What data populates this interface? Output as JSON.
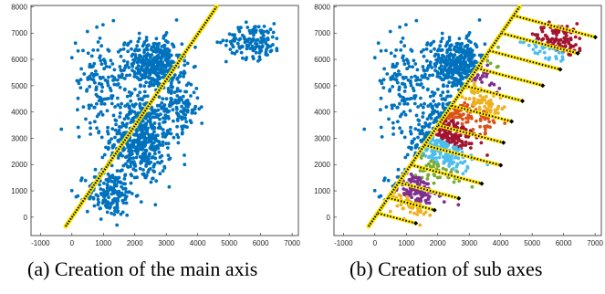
{
  "figure": {
    "colors": {
      "points": "#0072BD",
      "axis_fill": "#FFE600",
      "axis_dots": "#000000",
      "sub_colors": [
        "#0072BD",
        "#D95319",
        "#EDB120",
        "#7E2F8E",
        "#77AC30",
        "#4DBEEE",
        "#A2142F"
      ]
    }
  },
  "chart_data": [
    {
      "type": "scatter",
      "caption": "(a) Creation of the main axis",
      "xlim": [
        -1300,
        7200
      ],
      "ylim": [
        -700,
        8050
      ],
      "x_ticks": [
        -1000,
        0,
        1000,
        2000,
        3000,
        4000,
        5000,
        6000,
        7000
      ],
      "y_ticks": [
        0,
        1000,
        2000,
        3000,
        4000,
        5000,
        6000,
        7000,
        8000
      ],
      "main_axis": {
        "from": [
          -200,
          -350
        ],
        "to": [
          4600,
          8000
        ]
      },
      "clusters": [
        {
          "cx": 2200,
          "cy": 3000,
          "sx": 900,
          "sy": 1600,
          "n": 520
        },
        {
          "cx": 2600,
          "cy": 5800,
          "sx": 800,
          "sy": 900,
          "n": 380
        },
        {
          "cx": 1200,
          "cy": 900,
          "sx": 700,
          "sy": 800,
          "n": 170
        },
        {
          "cx": 5800,
          "cy": 6700,
          "sx": 800,
          "sy": 600,
          "n": 140
        },
        {
          "cx": 900,
          "cy": 5200,
          "sx": 700,
          "sy": 1600,
          "n": 130
        },
        {
          "cx": 3500,
          "cy": 4200,
          "sx": 500,
          "sy": 900,
          "n": 110
        }
      ]
    },
    {
      "type": "scatter",
      "caption": "(b) Creation of sub axes",
      "xlim": [
        -1300,
        7200
      ],
      "ylim": [
        -700,
        8050
      ],
      "x_ticks": [
        -1000,
        0,
        1000,
        2000,
        3000,
        4000,
        5000,
        6000,
        7000
      ],
      "y_ticks": [
        0,
        1000,
        2000,
        3000,
        4000,
        5000,
        6000,
        7000,
        8000
      ],
      "main_axis": {
        "from": [
          -200,
          -350
        ],
        "to": [
          4600,
          8000
        ]
      },
      "sub_axes": [
        {
          "t": 0.06,
          "len": 1400
        },
        {
          "t": 0.13,
          "len": 1700
        },
        {
          "t": 0.2,
          "len": 2200
        },
        {
          "t": 0.28,
          "len": 2600
        },
        {
          "t": 0.37,
          "len": 2800
        },
        {
          "t": 0.46,
          "len": 2400
        },
        {
          "t": 0.55,
          "len": 2200
        },
        {
          "t": 0.64,
          "len": 2100
        },
        {
          "t": 0.72,
          "len": 2400
        },
        {
          "t": 0.8,
          "len": 2600
        },
        {
          "t": 0.88,
          "len": 2800
        },
        {
          "t": 0.96,
          "len": 3000
        }
      ]
    }
  ]
}
